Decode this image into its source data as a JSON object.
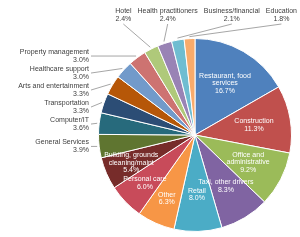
{
  "chart_data": {
    "type": "pie",
    "categories": [
      "Restaurant, food services",
      "Construction",
      "Office and administrative",
      "Taxi, other drivers",
      "Retail",
      "Other",
      "Personal care",
      "Building, grounds cleaning/maint",
      "General Services",
      "Computer/IT",
      "Transportation",
      "Arts and entertainment",
      "Healthcare support",
      "Property management",
      "Hotel",
      "Health practitioners",
      "Business/financial",
      "Education"
    ],
    "values": [
      16.7,
      11.3,
      9.2,
      8.3,
      8.0,
      6.3,
      6.0,
      5.4,
      3.9,
      3.6,
      3.3,
      3.3,
      3.0,
      3.0,
      2.4,
      2.4,
      2.1,
      1.8
    ],
    "value_labels": [
      "16.7%",
      "11.3%",
      "9.2%",
      "8.3%",
      "8.0%",
      "6.3%",
      "6.0%",
      "5.4%",
      "3.9%",
      "3.6%",
      "3.3%",
      "3.3%",
      "3.0%",
      "3.0%",
      "2.4%",
      "2.4%",
      "2.1%",
      "1.8%"
    ],
    "colors": [
      "#4f81bd",
      "#c0504d",
      "#9bbb59",
      "#8064a2",
      "#4bacc6",
      "#f79646",
      "#c84b5a",
      "#772c2a",
      "#5f7530",
      "#276a7c",
      "#2c4d75",
      "#b65708",
      "#729aca",
      "#cd7371",
      "#afc97a",
      "#9983b5",
      "#6fbdd1",
      "#f9ab6b"
    ],
    "data_labels": true
  }
}
